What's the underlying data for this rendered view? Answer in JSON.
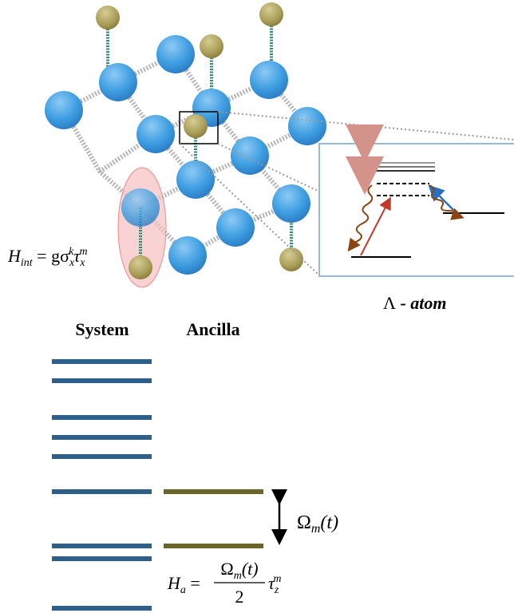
{
  "interaction": {
    "parts": [
      "H",
      "int",
      " = gσ",
      "x",
      "k",
      "τ",
      "x",
      "m"
    ]
  },
  "atom_label": {
    "parts": [
      "Λ",
      " - atom"
    ]
  },
  "columns": {
    "system": "System",
    "ancilla": "Ancilla"
  },
  "splitting": {
    "parts": [
      "Ω",
      "m",
      "(t)"
    ]
  },
  "ancilla_hamiltonian": {
    "lhs": [
      "H",
      "a",
      " ="
    ],
    "numerator": [
      "Ω",
      "m",
      "(t)"
    ],
    "denominator": "2",
    "tail": [
      "τ",
      "z",
      "m"
    ]
  }
}
